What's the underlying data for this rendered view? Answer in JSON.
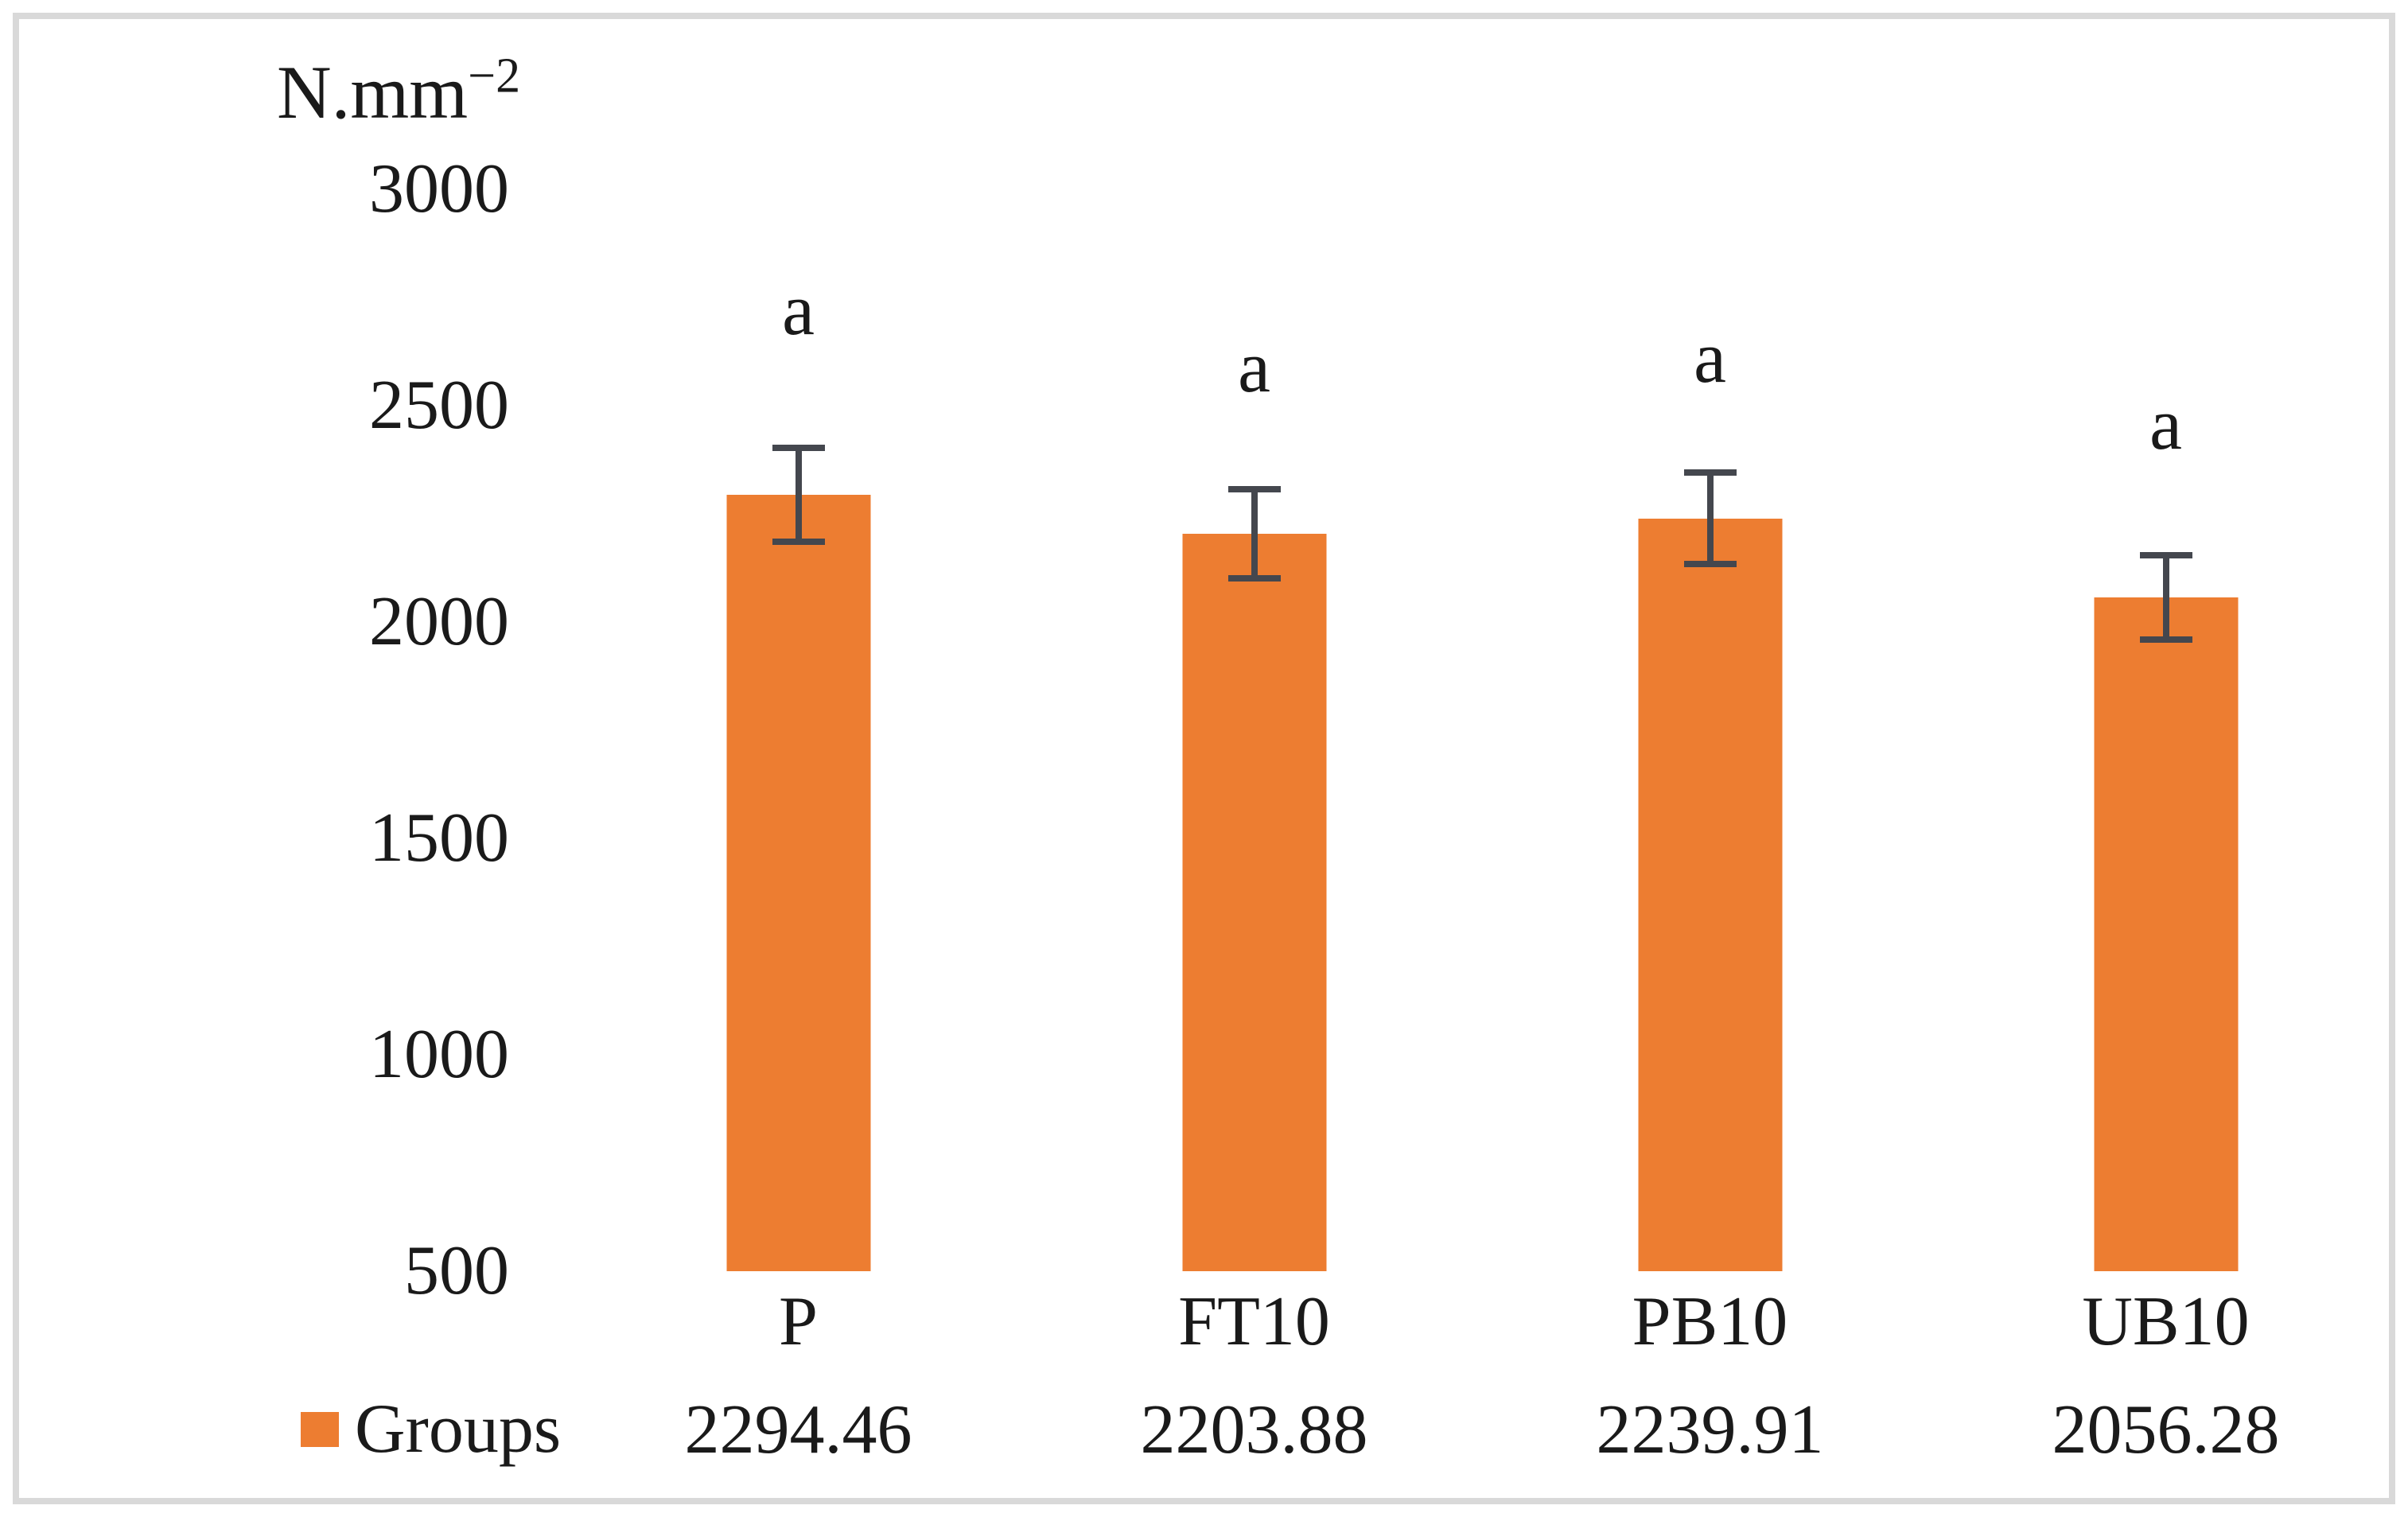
{
  "chart_data": {
    "type": "bar",
    "title": "",
    "ylabel": "N.mm⁻²",
    "ylabel_base": "N.mm",
    "ylabel_exponent": "−2",
    "yticks": [
      3000,
      2500,
      2000,
      1500,
      1000,
      500
    ],
    "ylim": [
      500,
      3000
    ],
    "baseline_value": 500,
    "grid": false,
    "data_table_shown": true,
    "categories": [
      "P",
      "FT10",
      "PB10",
      "UB10"
    ],
    "series": [
      {
        "name": "Groups",
        "values": [
          2294.46,
          2203.88,
          2239.91,
          2056.28
        ]
      }
    ],
    "error_bars": [
      116,
      110,
      113,
      105
    ],
    "sig_letters": [
      "a",
      "a",
      "a",
      "a"
    ],
    "sig_letter_y": [
      2723,
      2590,
      2613,
      2458
    ],
    "legend": {
      "label": "Groups",
      "position": "bottom-left"
    }
  },
  "colors": {
    "bar": "#ED7D31",
    "error_bar": "#44474E",
    "frame_border": "#D9D9D9",
    "text": "#1A1A1A"
  }
}
